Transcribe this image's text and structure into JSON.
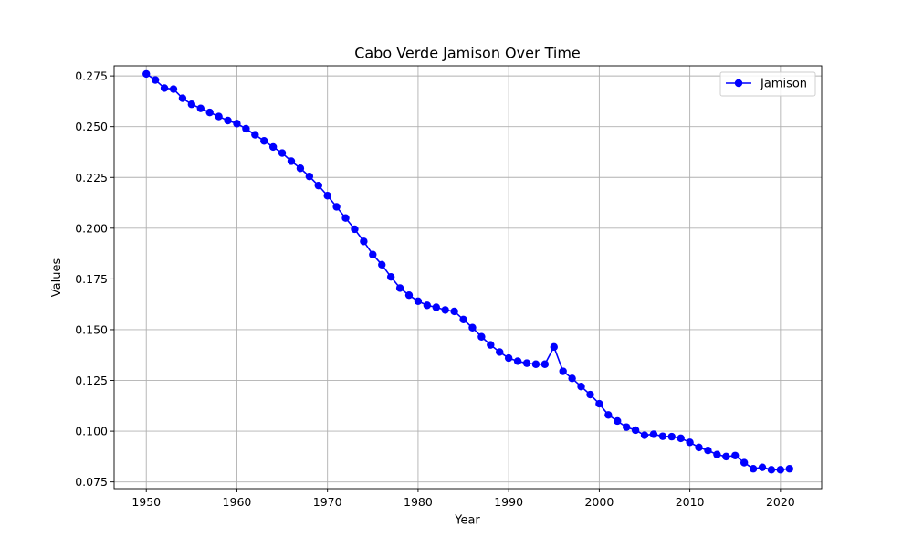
{
  "chart_data": {
    "type": "line",
    "title": "Cabo Verde Jamison Over Time",
    "xlabel": "Year",
    "ylabel": "Values",
    "xlim": [
      1946.45,
      2024.55
    ],
    "ylim": [
      0.0717,
      0.28
    ],
    "xticks": [
      1950,
      1960,
      1970,
      1980,
      1990,
      2000,
      2010,
      2020
    ],
    "yticks": [
      0.075,
      0.1,
      0.125,
      0.15,
      0.175,
      0.2,
      0.225,
      0.25,
      0.275
    ],
    "xtick_labels": [
      "1950",
      "1960",
      "1970",
      "1980",
      "1990",
      "2000",
      "2010",
      "2020"
    ],
    "ytick_labels": [
      "0.075",
      "0.100",
      "0.125",
      "0.150",
      "0.175",
      "0.200",
      "0.225",
      "0.250",
      "0.275"
    ],
    "grid": true,
    "legend_position": "top-right",
    "series": [
      {
        "name": "Jamison",
        "color": "#0000ff",
        "marker": "circle",
        "x": [
          1950,
          1951,
          1952,
          1953,
          1954,
          1955,
          1956,
          1957,
          1958,
          1959,
          1960,
          1961,
          1962,
          1963,
          1964,
          1965,
          1966,
          1967,
          1968,
          1969,
          1970,
          1971,
          1972,
          1973,
          1974,
          1975,
          1976,
          1977,
          1978,
          1979,
          1980,
          1981,
          1982,
          1983,
          1984,
          1985,
          1986,
          1987,
          1988,
          1989,
          1990,
          1991,
          1992,
          1993,
          1994,
          1995,
          1996,
          1997,
          1998,
          1999,
          2000,
          2001,
          2002,
          2003,
          2004,
          2005,
          2006,
          2007,
          2008,
          2009,
          2010,
          2011,
          2012,
          2013,
          2014,
          2015,
          2016,
          2017,
          2018,
          2019,
          2020,
          2021
        ],
        "y": [
          0.276,
          0.273,
          0.269,
          0.2685,
          0.264,
          0.261,
          0.259,
          0.257,
          0.255,
          0.253,
          0.2515,
          0.249,
          0.246,
          0.243,
          0.24,
          0.237,
          0.233,
          0.2295,
          0.2255,
          0.221,
          0.216,
          0.2105,
          0.205,
          0.1995,
          0.1935,
          0.187,
          0.182,
          0.176,
          0.1705,
          0.167,
          0.164,
          0.162,
          0.161,
          0.1597,
          0.159,
          0.155,
          0.151,
          0.1465,
          0.1425,
          0.139,
          0.136,
          0.1345,
          0.1335,
          0.133,
          0.133,
          0.1415,
          0.1295,
          0.126,
          0.122,
          0.118,
          0.1135,
          0.108,
          0.105,
          0.102,
          0.1005,
          0.098,
          0.0985,
          0.0975,
          0.0973,
          0.0965,
          0.0945,
          0.092,
          0.0905,
          0.0885,
          0.0875,
          0.088,
          0.0845,
          0.0815,
          0.0822,
          0.081,
          0.081,
          0.0815
        ]
      }
    ]
  }
}
